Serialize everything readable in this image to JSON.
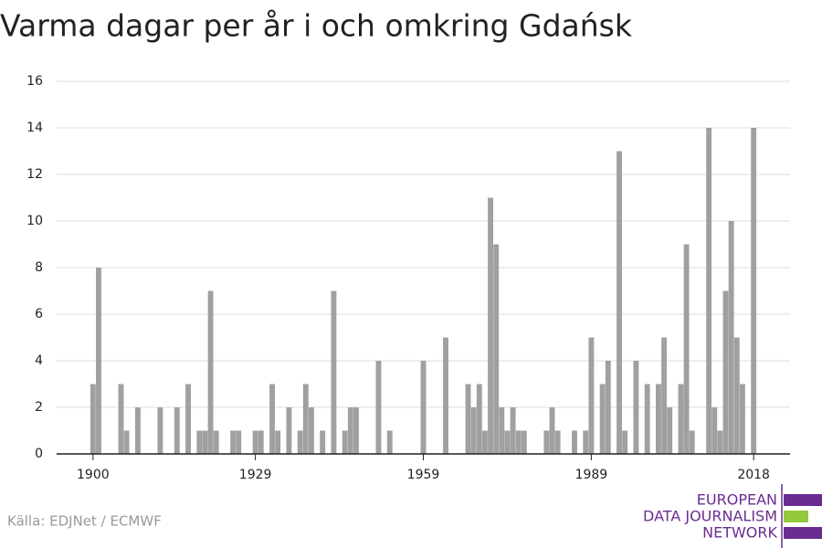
{
  "chart_data": {
    "type": "bar",
    "title": "Varma dagar per år i och omkring Gdańsk",
    "x": [
      1900,
      1901,
      1905,
      1906,
      1908,
      1912,
      1915,
      1917,
      1919,
      1920,
      1921,
      1922,
      1925,
      1926,
      1929,
      1930,
      1932,
      1933,
      1935,
      1937,
      1938,
      1939,
      1941,
      1943,
      1945,
      1946,
      1947,
      1951,
      1953,
      1959,
      1963,
      1967,
      1968,
      1969,
      1970,
      1971,
      1972,
      1973,
      1974,
      1975,
      1976,
      1977,
      1981,
      1982,
      1983,
      1986,
      1988,
      1989,
      1991,
      1992,
      1994,
      1995,
      1997,
      1999,
      2001,
      2002,
      2003,
      2005,
      2006,
      2007,
      2010,
      2011,
      2012,
      2013,
      2014,
      2015,
      2016,
      2018
    ],
    "values": [
      3,
      8,
      3,
      1,
      2,
      2,
      2,
      3,
      1,
      1,
      7,
      1,
      1,
      1,
      1,
      1,
      3,
      1,
      2,
      1,
      3,
      2,
      1,
      7,
      1,
      2,
      2,
      4,
      1,
      4,
      5,
      3,
      2,
      3,
      1,
      11,
      9,
      2,
      1,
      2,
      1,
      1,
      1,
      2,
      1,
      1,
      1,
      5,
      3,
      4,
      13,
      1,
      4,
      3,
      3,
      5,
      2,
      3,
      9,
      1,
      14,
      2,
      1,
      7,
      10,
      5,
      3,
      14
    ],
    "color": "#a0a0a0",
    "xlim": [
      1893.5,
      2024.5
    ],
    "xticks": [
      1900,
      1929,
      1959,
      1989,
      2018
    ],
    "ylim": [
      0,
      16
    ],
    "yticks": [
      0,
      2,
      4,
      6,
      8,
      10,
      12,
      14,
      16
    ],
    "grid": true,
    "source": "Källa: EDJNet / ECMWF",
    "logo": [
      "EUROPEAN",
      "DATA JOURNALISM",
      "NETWORK"
    ]
  }
}
